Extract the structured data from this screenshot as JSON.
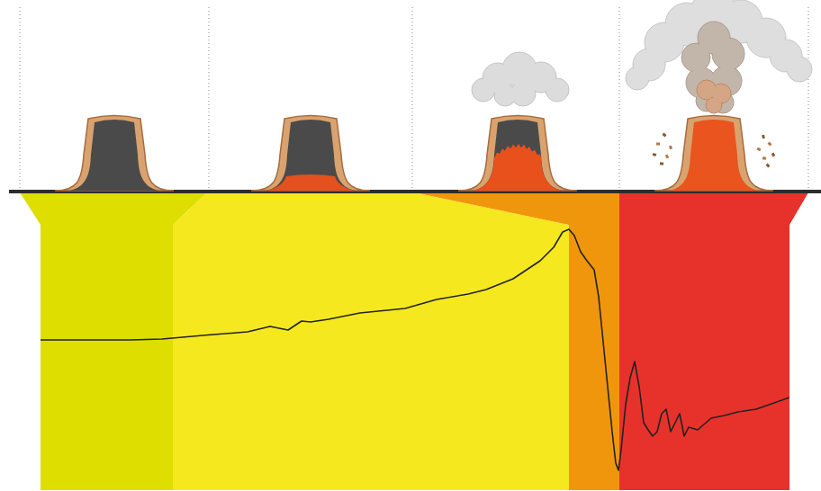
{
  "chart_data": {
    "type": "line",
    "x": [
      0,
      50,
      100,
      135,
      180,
      230,
      255,
      275,
      290,
      300,
      320,
      355,
      405,
      440,
      475,
      495,
      525,
      555,
      570,
      580,
      587,
      593,
      600,
      607,
      615,
      620,
      625,
      630,
      635,
      639,
      642,
      645,
      650,
      655,
      660,
      665,
      670,
      675,
      680,
      685,
      690,
      695,
      700,
      705,
      710,
      715,
      720,
      730,
      745,
      760,
      775,
      795,
      815,
      832
    ],
    "values": [
      167,
      167,
      167,
      168,
      172,
      176,
      182,
      178,
      188,
      187,
      190,
      197,
      202,
      212,
      218,
      223,
      235,
      255,
      270,
      287,
      290,
      283,
      265,
      255,
      245,
      215,
      165,
      115,
      65,
      30,
      22,
      45,
      95,
      125,
      143,
      115,
      75,
      67,
      60,
      65,
      85,
      90,
      65,
      75,
      85,
      60,
      70,
      67,
      80,
      83,
      87,
      90,
      97,
      103
    ],
    "color": "#222222",
    "xlim": [
      0,
      832
    ],
    "ylim": [
      0,
      325
    ],
    "xticks": [],
    "yticks": [],
    "tick_labels": false,
    "stages": [
      {
        "start": 0,
        "end": 147,
        "color": "#dede00"
      },
      {
        "start": 147,
        "end": 587,
        "color": "#f6e81e"
      },
      {
        "start": 587,
        "end": 643,
        "color": "#f0960c"
      },
      {
        "start": 643,
        "end": 832,
        "color": "#e7322c"
      }
    ]
  }
}
